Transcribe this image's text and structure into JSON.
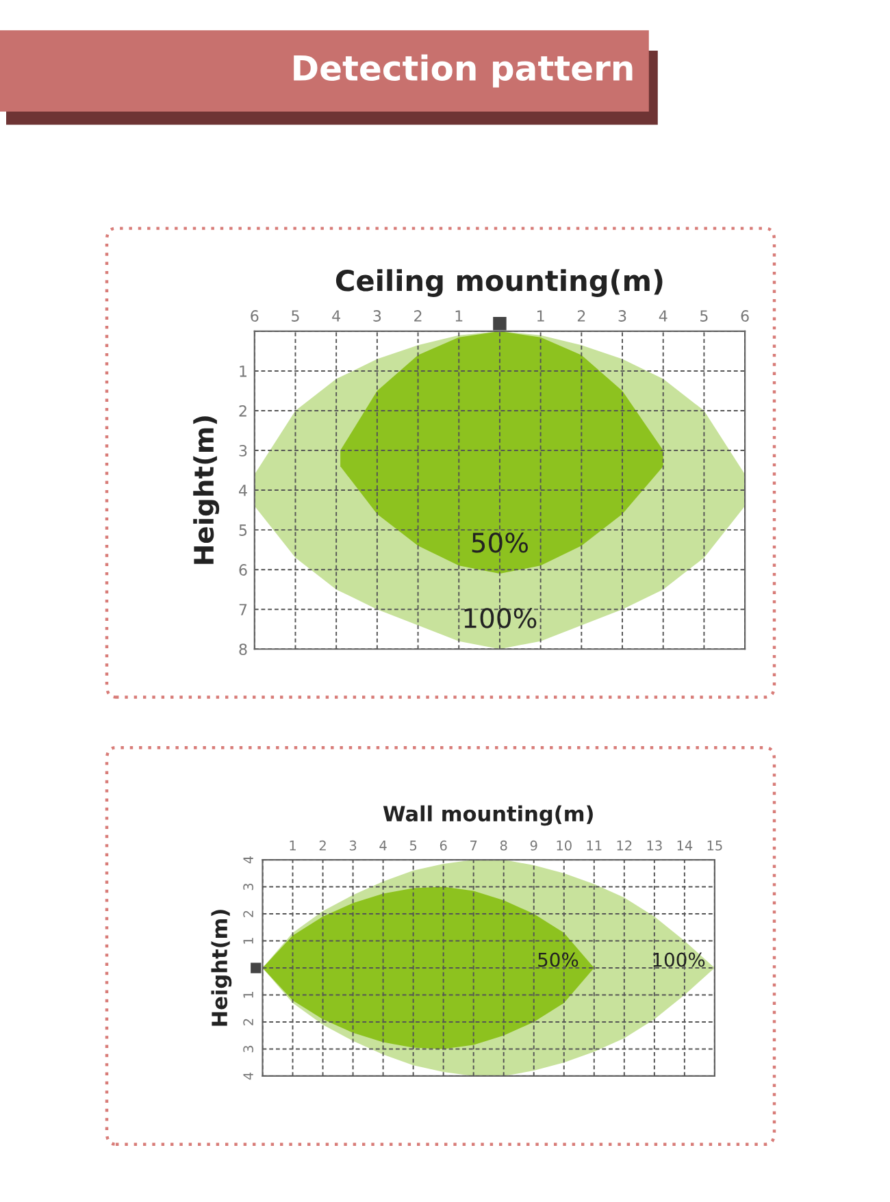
{
  "chart_data": [
    {
      "type": "area",
      "title": "Detection pattern",
      "xlabel": "Ceiling mounting(m)",
      "ylabel": "Height(m)",
      "xlim": [
        -6,
        6
      ],
      "ylim": [
        8,
        0
      ],
      "xticks": [
        {
          "value": -6,
          "label": "6"
        },
        {
          "value": -5,
          "label": "5"
        },
        {
          "value": -4,
          "label": "4"
        },
        {
          "value": -3,
          "label": "3"
        },
        {
          "value": -2,
          "label": "2"
        },
        {
          "value": -1,
          "label": "1"
        },
        {
          "value": 0,
          "label": null
        },
        1,
        2,
        3,
        4,
        5,
        6
      ],
      "yticks": [
        {
          "value": 0,
          "label": null
        },
        1,
        2,
        3,
        4,
        5,
        6,
        7,
        8
      ],
      "grid": true,
      "legend": false,
      "annotations": [
        "100%",
        "50%"
      ],
      "series": [
        {
          "color": "#c8e29c",
          "x": [
            -6,
            -5,
            -4,
            -3,
            -2,
            -1,
            0,
            1,
            2,
            3,
            4,
            5,
            6
          ],
          "values": [
            null,
            null,
            null,
            null,
            null,
            null,
            null,
            null,
            null,
            null,
            null,
            null,
            null
          ],
          "lower": [
            3.6,
            2.0,
            1.2,
            0.7,
            0.35,
            0.1,
            0.0,
            0.1,
            0.35,
            0.7,
            1.2,
            2.0,
            3.6
          ],
          "upper": [
            4.4,
            5.7,
            6.5,
            7.0,
            7.4,
            7.8,
            8.0,
            7.8,
            7.4,
            7.0,
            6.5,
            5.7,
            4.4
          ]
        },
        {
          "color": "#8dc21f",
          "x": [
            -3.9,
            -3,
            -2,
            -1,
            0,
            1,
            2,
            3,
            4
          ],
          "values": [
            null,
            null,
            null,
            null,
            null,
            null,
            null,
            null,
            null
          ],
          "lower": [
            3.0,
            1.5,
            0.6,
            0.15,
            0.0,
            0.15,
            0.6,
            1.5,
            3.0
          ],
          "upper": [
            3.4,
            4.6,
            5.4,
            5.9,
            6.1,
            5.9,
            5.4,
            4.6,
            3.4
          ]
        }
      ]
    },
    {
      "type": "area",
      "xlabel": "Wall mounting(m)",
      "ylabel": "Height(m)",
      "xlim": [
        0,
        15
      ],
      "ylim": [
        -4,
        4
      ],
      "xticks": [
        {
          "value": 0,
          "label": null
        },
        1,
        2,
        3,
        4,
        5,
        6,
        7,
        8,
        9,
        10,
        11,
        12,
        13,
        14,
        15
      ],
      "yticks": [
        {
          "value": -4,
          "label": "4"
        },
        {
          "value": -3,
          "label": "3"
        },
        {
          "value": -2,
          "label": "2"
        },
        {
          "value": -1,
          "label": "1"
        },
        {
          "value": 0,
          "label": null
        },
        1,
        2,
        3,
        4
      ],
      "grid": true,
      "legend": false,
      "annotations": [
        "100%",
        "50%"
      ],
      "series": [
        {
          "color": "#c8e29c",
          "x": [
            0,
            1,
            2,
            3,
            4,
            5,
            6,
            7,
            8,
            9,
            10,
            11,
            12,
            13,
            14,
            15
          ],
          "values": [
            null,
            null,
            null,
            null,
            null,
            null,
            null,
            null,
            null,
            null,
            null,
            null,
            null,
            null,
            null,
            null
          ],
          "lower": [
            0,
            -1.3,
            -2.1,
            -2.7,
            -3.2,
            -3.6,
            -3.85,
            -4.0,
            -4.0,
            -3.8,
            -3.5,
            -3.1,
            -2.6,
            -1.9,
            -1.0,
            0
          ],
          "upper": [
            0,
            1.3,
            2.1,
            2.7,
            3.2,
            3.6,
            3.85,
            4.0,
            4.0,
            3.8,
            3.5,
            3.1,
            2.6,
            1.9,
            1.0,
            0
          ]
        },
        {
          "color": "#8dc21f",
          "x": [
            0,
            1,
            2,
            3,
            4,
            5,
            6,
            7,
            8,
            9,
            10,
            11
          ],
          "values": [
            null,
            null,
            null,
            null,
            null,
            null,
            null,
            null,
            null,
            null,
            null,
            null
          ],
          "lower": [
            0,
            -1.2,
            -1.9,
            -2.4,
            -2.75,
            -2.95,
            -3.0,
            -2.85,
            -2.5,
            -2.0,
            -1.3,
            0
          ],
          "upper": [
            0,
            1.2,
            1.9,
            2.4,
            2.75,
            2.95,
            3.0,
            2.85,
            2.5,
            2.0,
            1.3,
            0
          ]
        }
      ]
    }
  ]
}
